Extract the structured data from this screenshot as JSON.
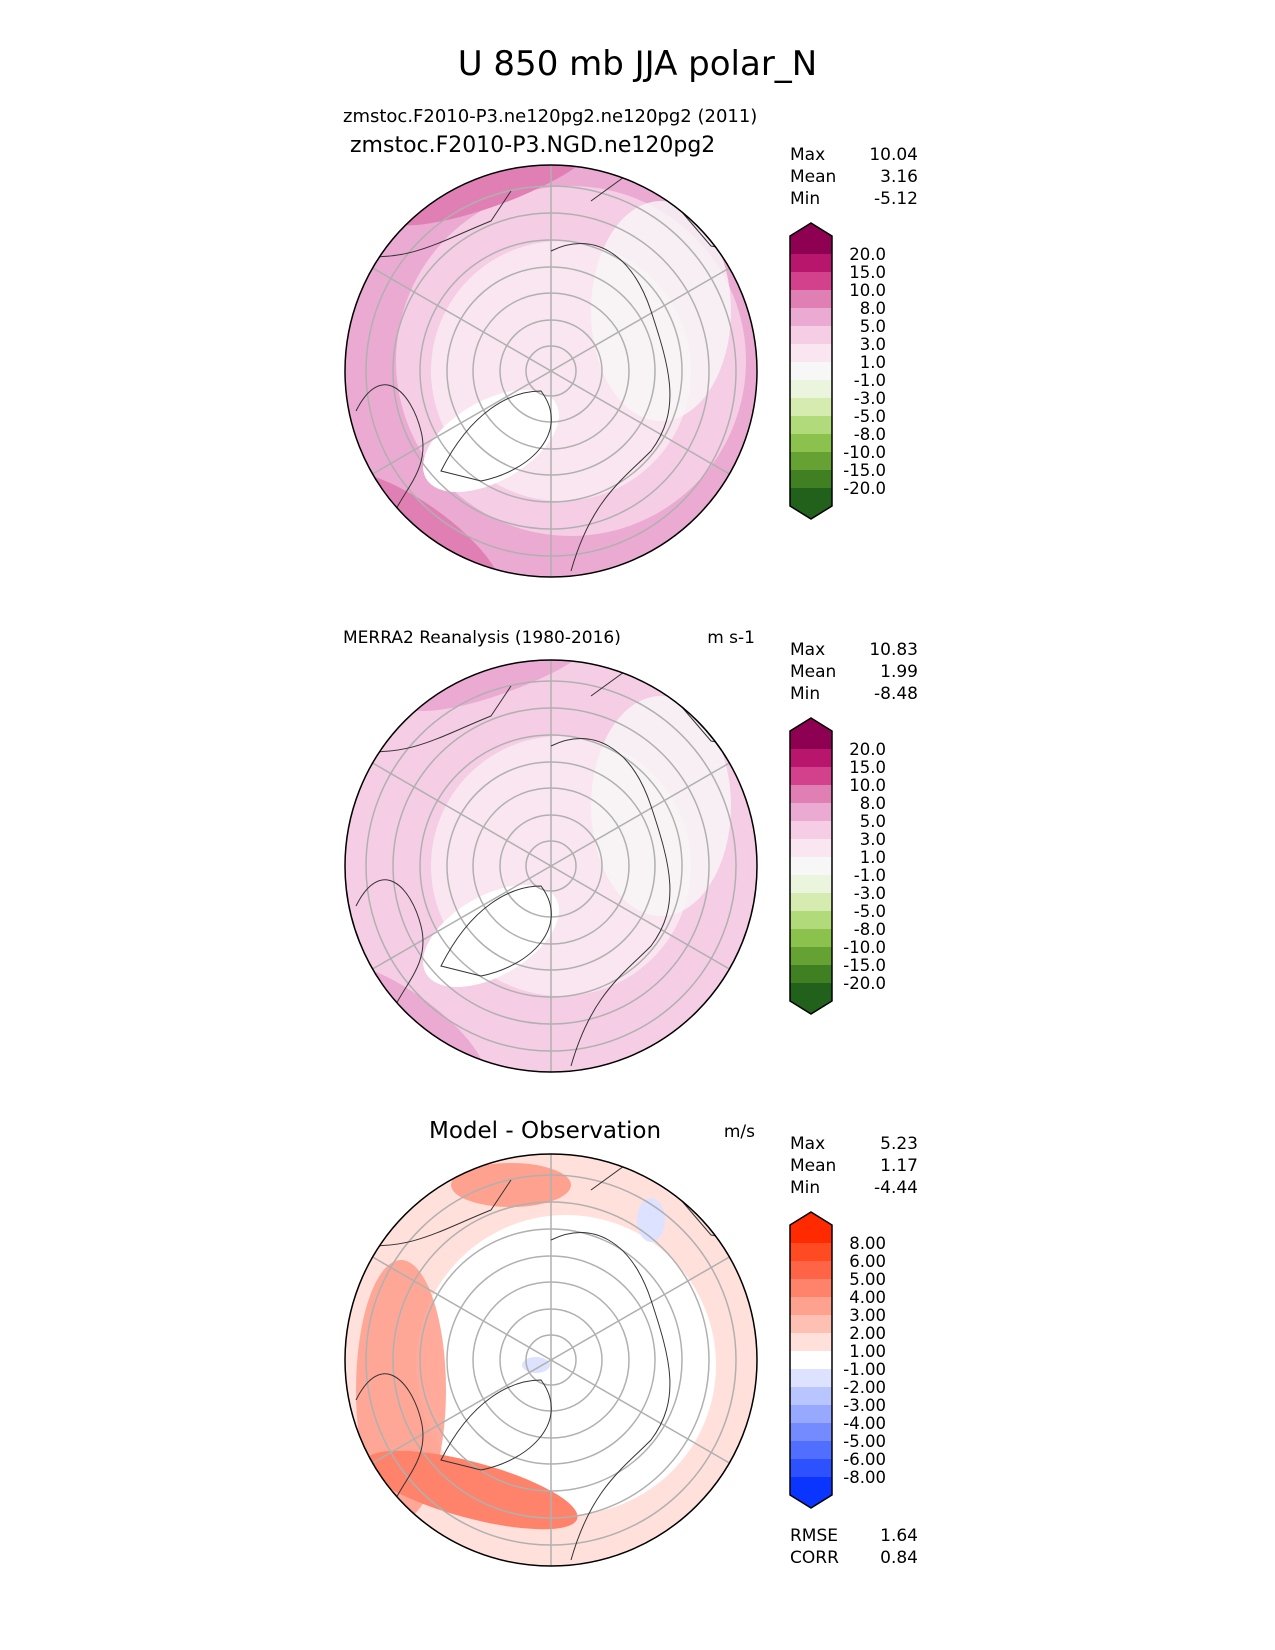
{
  "title": "U 850 mb JJA polar_N",
  "colors": {
    "grid": "#b0b0b0",
    "coast": "#333333",
    "piyg": [
      "#8e0152",
      "#b8166c",
      "#d3418c",
      "#e07fb3",
      "#ebaad2",
      "#f5cde5",
      "#fae6f0",
      "#f7f7f7",
      "#ebf4dc",
      "#d5ebb0",
      "#b1db7b",
      "#8bc24d",
      "#65a233",
      "#418022",
      "#22611b"
    ],
    "diff": [
      "#ff2a00",
      "#ff4a22",
      "#ff6446",
      "#ff826a",
      "#ffa18f",
      "#ffc0b4",
      "#ffe0da",
      "#ffffff",
      "#dce2ff",
      "#b9c5ff",
      "#96a8ff",
      "#738bff",
      "#506eff",
      "#2d51ff",
      "#0a34ff"
    ]
  },
  "chart_data": [
    {
      "type": "heatmap",
      "projection": "polar_N",
      "title": "zmstoc.F2010-P3.NGD.ne120pg2",
      "title_overlap": "zmstoc.F2010-P3.ne120pg2.ne120pg2 (2011)",
      "units": "",
      "stats": {
        "max_label": "Max",
        "max": "10.04",
        "mean_label": "Mean",
        "mean": "3.16",
        "min_label": "Min",
        "min": "-5.12"
      },
      "levels": [
        "20.0",
        "15.0",
        "10.0",
        "8.0",
        "5.0",
        "3.0",
        "1.0",
        "-1.0",
        "-3.0",
        "-5.0",
        "-8.0",
        "-10.0",
        "-15.0",
        "-20.0"
      ]
    },
    {
      "type": "heatmap",
      "projection": "polar_N",
      "title": "MERRA2 Reanalysis (1980-2016)",
      "units": "m s-1",
      "stats": {
        "max_label": "Max",
        "max": "10.83",
        "mean_label": "Mean",
        "mean": "1.99",
        "min_label": "Min",
        "min": "-8.48"
      },
      "levels": [
        "20.0",
        "15.0",
        "10.0",
        "8.0",
        "5.0",
        "3.0",
        "1.0",
        "-1.0",
        "-3.0",
        "-5.0",
        "-8.0",
        "-10.0",
        "-15.0",
        "-20.0"
      ]
    },
    {
      "type": "heatmap",
      "projection": "polar_N",
      "title": "Model - Observation",
      "units": "m/s",
      "stats": {
        "max_label": "Max",
        "max": "5.23",
        "mean_label": "Mean",
        "mean": "1.17",
        "min_label": "Min",
        "min": "-4.44"
      },
      "levels": [
        "8.00",
        "6.00",
        "5.00",
        "4.00",
        "3.00",
        "2.00",
        "1.00",
        "-1.00",
        "-2.00",
        "-3.00",
        "-4.00",
        "-5.00",
        "-6.00",
        "-8.00"
      ],
      "metrics": {
        "rmse_label": "RMSE",
        "rmse": "1.64",
        "corr_label": "CORR",
        "corr": "0.84"
      }
    }
  ]
}
